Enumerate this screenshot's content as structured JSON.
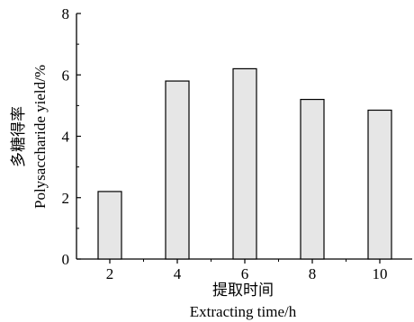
{
  "chart_data": {
    "type": "bar",
    "categories": [
      "2",
      "4",
      "6",
      "8",
      "10"
    ],
    "values": [
      2.2,
      5.8,
      6.2,
      5.2,
      4.85
    ],
    "title": "",
    "xlabel": "提取时间",
    "xlabel_en": "Extracting time/h",
    "ylabel": "多糖得率",
    "ylabel_en": "Polysaccharide yield/%",
    "ylim": [
      0,
      8
    ],
    "yticks": [
      "0",
      "2",
      "4",
      "6",
      "8"
    ],
    "grid": false,
    "legend": "none",
    "colors": {
      "bar_fill": "#e6e6e6",
      "bar_stroke": "#000000",
      "axis": "#000000"
    }
  }
}
